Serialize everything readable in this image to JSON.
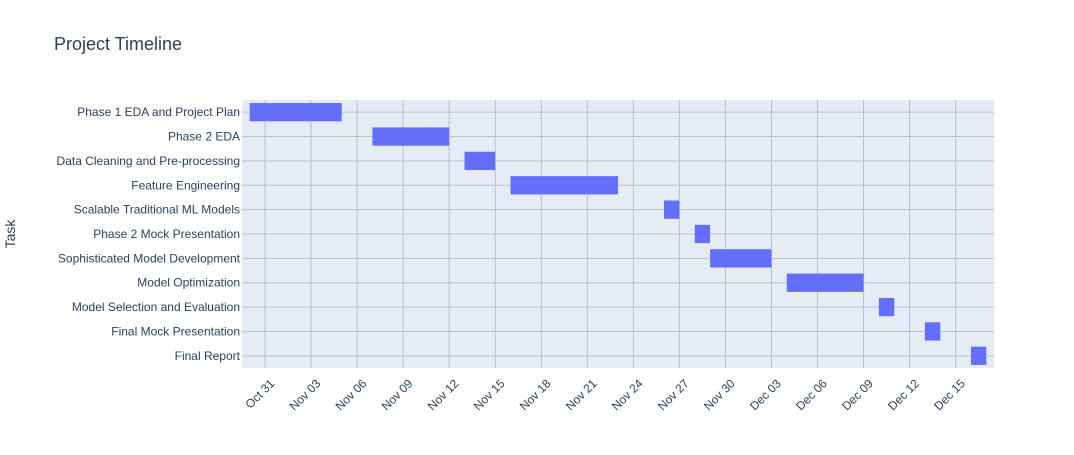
{
  "chart_data": {
    "type": "gantt",
    "title": "Project Timeline",
    "xlabel": "",
    "ylabel": "Task",
    "x_range": [
      "2023-10-29T12:00",
      "2023-12-17T12:00"
    ],
    "x_ticks": [
      {
        "date": "2023-10-31",
        "label": "Oct 31"
      },
      {
        "date": "2023-11-03",
        "label": "Nov 03"
      },
      {
        "date": "2023-11-06",
        "label": "Nov 06"
      },
      {
        "date": "2023-11-09",
        "label": "Nov 09"
      },
      {
        "date": "2023-11-12",
        "label": "Nov 12"
      },
      {
        "date": "2023-11-15",
        "label": "Nov 15"
      },
      {
        "date": "2023-11-18",
        "label": "Nov 18"
      },
      {
        "date": "2023-11-21",
        "label": "Nov 21"
      },
      {
        "date": "2023-11-24",
        "label": "Nov 24"
      },
      {
        "date": "2023-11-27",
        "label": "Nov 27"
      },
      {
        "date": "2023-11-30",
        "label": "Nov 30"
      },
      {
        "date": "2023-12-03",
        "label": "Dec 03"
      },
      {
        "date": "2023-12-06",
        "label": "Dec 06"
      },
      {
        "date": "2023-12-09",
        "label": "Dec 09"
      },
      {
        "date": "2023-12-12",
        "label": "Dec 12"
      },
      {
        "date": "2023-12-15",
        "label": "Dec 15"
      }
    ],
    "tasks": [
      {
        "task": "Phase 1 EDA and Project Plan",
        "start": "2023-10-30",
        "end": "2023-11-05"
      },
      {
        "task": "Phase 2 EDA",
        "start": "2023-11-07",
        "end": "2023-11-12"
      },
      {
        "task": "Data Cleaning and Pre-processing",
        "start": "2023-11-13",
        "end": "2023-11-15"
      },
      {
        "task": "Feature Engineering",
        "start": "2023-11-16",
        "end": "2023-11-23"
      },
      {
        "task": "Scalable Traditional ML Models",
        "start": "2023-11-26",
        "end": "2023-11-27"
      },
      {
        "task": "Phase 2 Mock Presentation",
        "start": "2023-11-28",
        "end": "2023-11-29"
      },
      {
        "task": "Sophisticated Model Development",
        "start": "2023-11-29",
        "end": "2023-12-03"
      },
      {
        "task": "Model Optimization",
        "start": "2023-12-04",
        "end": "2023-12-09"
      },
      {
        "task": "Model Selection and Evaluation",
        "start": "2023-12-10",
        "end": "2023-12-11"
      },
      {
        "task": "Final Mock Presentation",
        "start": "2023-12-13",
        "end": "2023-12-14"
      },
      {
        "task": "Final Report",
        "start": "2023-12-16",
        "end": "2023-12-17"
      }
    ],
    "grid": true,
    "colors": {
      "bar": "#636efa",
      "plot_bg": "#e5ecf6",
      "grid": "#b9bfd0",
      "text": "#2a3f5f"
    }
  }
}
